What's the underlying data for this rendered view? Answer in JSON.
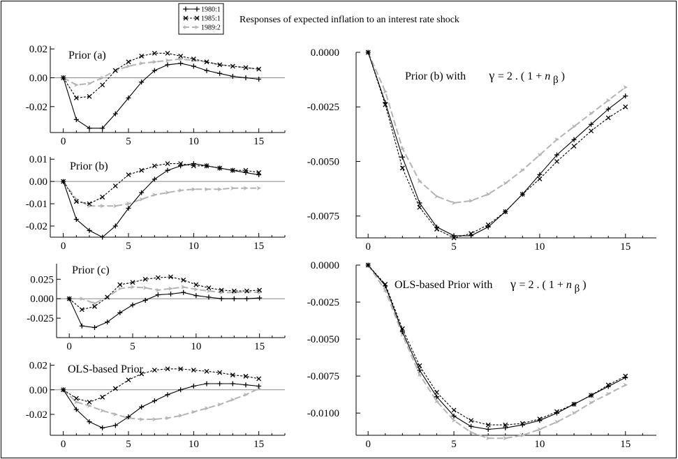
{
  "figure": {
    "title": "Responses of expected inflation to an interest rate shock"
  },
  "legend": [
    {
      "name": "1980:1",
      "marker": "plus",
      "dash": "solid",
      "color": "#000000"
    },
    {
      "name": "1985:1",
      "marker": "cross",
      "dash": "short-dash",
      "color": "#000000"
    },
    {
      "name": "1989:2",
      "marker": "arrow",
      "dash": "long-dash",
      "color": "#bbbbbb"
    }
  ],
  "chart_data": [
    {
      "type": "line",
      "title": "Prior (a)",
      "x": [
        0,
        1,
        2,
        3,
        4,
        5,
        6,
        7,
        8,
        9,
        10,
        11,
        12,
        13,
        14,
        15
      ],
      "xticks": [
        0,
        5,
        10,
        15
      ],
      "xlim": [
        -1,
        17
      ],
      "yticks": [
        -0.02,
        0.0,
        0.02
      ],
      "ytick_labels": [
        "-0.02",
        "0.00",
        "0.02"
      ],
      "ylim": [
        -0.038,
        0.022
      ],
      "zero_line": true,
      "series": [
        {
          "name": "1980:1",
          "values": [
            0,
            -0.029,
            -0.035,
            -0.035,
            -0.025,
            -0.014,
            -0.003,
            0.005,
            0.009,
            0.01,
            0.008,
            0.005,
            0.003,
            0.001,
            0.0,
            -0.001
          ]
        },
        {
          "name": "1985:1",
          "values": [
            0,
            -0.014,
            -0.013,
            -0.005,
            0.005,
            0.011,
            0.015,
            0.017,
            0.017,
            0.015,
            0.013,
            0.011,
            0.009,
            0.008,
            0.007,
            0.006
          ]
        },
        {
          "name": "1989:2",
          "values": [
            0,
            -0.005,
            -0.004,
            0.0,
            0.005,
            0.008,
            0.01,
            0.011,
            0.012,
            0.013,
            0.012,
            0.011,
            0.009,
            0.008,
            0.007,
            0.006
          ]
        }
      ]
    },
    {
      "type": "line",
      "title": "Prior (b)",
      "x": [
        0,
        1,
        2,
        3,
        4,
        5,
        6,
        7,
        8,
        9,
        10,
        11,
        12,
        13,
        14,
        15
      ],
      "xticks": [
        0,
        5,
        10,
        15
      ],
      "xlim": [
        -1,
        17
      ],
      "yticks": [
        -0.02,
        -0.01,
        0.0,
        0.01
      ],
      "ytick_labels": [
        "-0.02",
        "-0.01",
        "0.00",
        "0.01"
      ],
      "ylim": [
        -0.025,
        0.011
      ],
      "zero_line": true,
      "series": [
        {
          "name": "1980:1",
          "values": [
            0,
            -0.017,
            -0.022,
            -0.025,
            -0.02,
            -0.012,
            -0.005,
            0.001,
            0.005,
            0.007,
            0.008,
            0.007,
            0.006,
            0.005,
            0.004,
            0.003
          ]
        },
        {
          "name": "1985:1",
          "values": [
            0,
            -0.009,
            -0.01,
            -0.007,
            -0.002,
            0.003,
            0.005,
            0.007,
            0.008,
            0.008,
            0.007,
            0.007,
            0.006,
            0.005,
            0.005,
            0.004
          ]
        },
        {
          "name": "1989:2",
          "values": [
            0,
            -0.008,
            -0.011,
            -0.011,
            -0.011,
            -0.01,
            -0.008,
            -0.006,
            -0.005,
            -0.004,
            -0.0035,
            -0.0035,
            -0.0035,
            -0.003,
            -0.003,
            -0.003
          ]
        }
      ]
    },
    {
      "type": "line",
      "title": "Prior (c)",
      "x": [
        0,
        1,
        2,
        3,
        4,
        5,
        6,
        7,
        8,
        9,
        10,
        11,
        12,
        13,
        14,
        15
      ],
      "xticks": [
        0,
        5,
        10,
        15
      ],
      "xlim": [
        -1,
        17
      ],
      "yticks": [
        -0.025,
        0.0,
        0.025
      ],
      "ytick_labels": [
        "-0.025",
        "0.000",
        "0.025"
      ],
      "ylim": [
        -0.05,
        0.045
      ],
      "zero_line": true,
      "series": [
        {
          "name": "1980:1",
          "values": [
            0,
            -0.035,
            -0.037,
            -0.03,
            -0.018,
            -0.008,
            -0.002,
            0.005,
            0.006,
            0.008,
            0.004,
            0.002,
            0.0,
            0.0,
            0.0,
            0.001
          ]
        },
        {
          "name": "1985:1",
          "values": [
            0,
            -0.014,
            -0.01,
            0.002,
            0.018,
            0.021,
            0.025,
            0.027,
            0.028,
            0.024,
            0.018,
            0.014,
            0.011,
            0.01,
            0.01,
            0.011
          ]
        },
        {
          "name": "1989:2",
          "values": [
            0,
            0.0,
            -0.006,
            0.002,
            0.013,
            0.015,
            0.014,
            0.011,
            0.013,
            0.015,
            0.012,
            0.01,
            0.008,
            0.008,
            0.009,
            0.008
          ]
        }
      ]
    },
    {
      "type": "line",
      "title": "OLS-based Prior",
      "x": [
        0,
        1,
        2,
        3,
        4,
        5,
        6,
        7,
        8,
        9,
        10,
        11,
        12,
        13,
        14,
        15
      ],
      "xticks": [
        0,
        5,
        10,
        15
      ],
      "xlim": [
        -1,
        17
      ],
      "yticks": [
        -0.02,
        0.0,
        0.02
      ],
      "ytick_labels": [
        "-0.02",
        "0.00",
        "0.02"
      ],
      "ylim": [
        -0.037,
        0.022
      ],
      "zero_line": true,
      "series": [
        {
          "name": "1980:1",
          "values": [
            0,
            -0.016,
            -0.026,
            -0.031,
            -0.029,
            -0.022,
            -0.014,
            -0.009,
            -0.004,
            0.0,
            0.003,
            0.005,
            0.005,
            0.005,
            0.004,
            0.003
          ]
        },
        {
          "name": "1985:1",
          "values": [
            0,
            -0.007,
            -0.01,
            -0.006,
            0.001,
            0.008,
            0.013,
            0.016,
            0.017,
            0.017,
            0.016,
            0.015,
            0.014,
            0.012,
            0.011,
            0.009
          ]
        },
        {
          "name": "1989:2",
          "values": [
            0,
            -0.01,
            -0.013,
            -0.017,
            -0.02,
            -0.023,
            -0.024,
            -0.024,
            -0.023,
            -0.021,
            -0.018,
            -0.015,
            -0.012,
            -0.008,
            -0.004,
            0.001
          ]
        }
      ]
    },
    {
      "type": "line",
      "title": "Prior (b) with",
      "equation": {
        "gamma": "γ",
        "eq": "=",
        "body": "2 . ( 1 + ",
        "n": "n",
        "sub": "β",
        "close": " )"
      },
      "x": [
        0,
        1,
        2,
        3,
        4,
        5,
        6,
        7,
        8,
        9,
        10,
        11,
        12,
        13,
        14,
        15
      ],
      "xticks": [
        0,
        5,
        10,
        15
      ],
      "xlim": [
        -0.7,
        16.8
      ],
      "yticks": [
        0.0,
        -0.0025,
        -0.005,
        -0.0075
      ],
      "ytick_labels": [
        "0.0000",
        "-0.0025",
        "-0.0050",
        "-0.0075"
      ],
      "ylim": [
        -0.0085,
        0.0
      ],
      "zero_line": false,
      "series": [
        {
          "name": "1980:1",
          "values": [
            0,
            -0.0023,
            -0.0048,
            -0.0069,
            -0.008,
            -0.0084,
            -0.0084,
            -0.008,
            -0.0073,
            -0.0065,
            -0.0056,
            -0.0047,
            -0.004,
            -0.0033,
            -0.0026,
            -0.002
          ]
        },
        {
          "name": "1985:1",
          "values": [
            0,
            -0.0024,
            -0.0053,
            -0.0071,
            -0.0081,
            -0.0085,
            -0.0083,
            -0.0079,
            -0.0073,
            -0.0065,
            -0.0058,
            -0.005,
            -0.0043,
            -0.0036,
            -0.003,
            -0.0025
          ]
        },
        {
          "name": "1989:2",
          "values": [
            0,
            -0.0018,
            -0.0044,
            -0.0059,
            -0.0066,
            -0.0069,
            -0.0068,
            -0.0065,
            -0.006,
            -0.0054,
            -0.0047,
            -0.004,
            -0.0034,
            -0.0028,
            -0.0022,
            -0.0016
          ]
        }
      ]
    },
    {
      "type": "line",
      "title": "OLS-based Prior with",
      "equation": {
        "gamma": "γ",
        "eq": "=",
        "body": "2 . ( 1 + ",
        "n": "n",
        "sub": "β",
        "close": " )"
      },
      "x": [
        0,
        1,
        2,
        3,
        4,
        5,
        6,
        7,
        8,
        9,
        10,
        11,
        12,
        13,
        14,
        15
      ],
      "xticks": [
        0,
        5,
        10,
        15
      ],
      "xlim": [
        -0.7,
        16.8
      ],
      "yticks": [
        0.0,
        -0.0025,
        -0.005,
        -0.0075,
        -0.01
      ],
      "ytick_labels": [
        "0.0000",
        "-0.0025",
        "-0.0050",
        "-0.0075",
        "-0.0100"
      ],
      "ylim": [
        -0.0115,
        0.0
      ],
      "zero_line": false,
      "series": [
        {
          "name": "1980:1",
          "values": [
            0,
            -0.0014,
            -0.0045,
            -0.0071,
            -0.0089,
            -0.0102,
            -0.0109,
            -0.0111,
            -0.011,
            -0.0108,
            -0.0105,
            -0.01,
            -0.0094,
            -0.0088,
            -0.0082,
            -0.0076
          ]
        },
        {
          "name": "1985:1",
          "values": [
            0,
            -0.0013,
            -0.0043,
            -0.0068,
            -0.0086,
            -0.0098,
            -0.0105,
            -0.0108,
            -0.0108,
            -0.0107,
            -0.0104,
            -0.0099,
            -0.0094,
            -0.0088,
            -0.0081,
            -0.0075
          ]
        },
        {
          "name": "1989:2",
          "values": [
            0,
            -0.0017,
            -0.0047,
            -0.0074,
            -0.0092,
            -0.0105,
            -0.0113,
            -0.0117,
            -0.0117,
            -0.0115,
            -0.0111,
            -0.0106,
            -0.01,
            -0.0093,
            -0.0087,
            -0.0081
          ]
        }
      ]
    }
  ]
}
